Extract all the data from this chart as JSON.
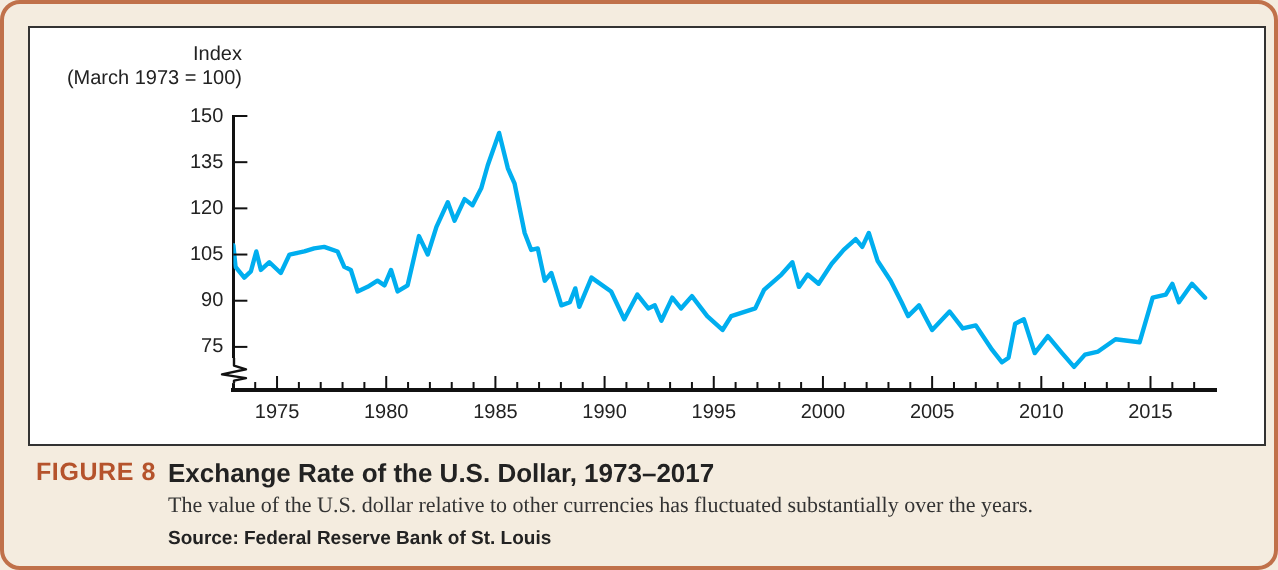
{
  "chart_data": {
    "type": "line",
    "title": "Exchange Rate of the U.S. Dollar, 1973–2017",
    "subtitle": "The value of the U.S. dollar relative to other currencies has fluctuated substantially over the years.",
    "ylabel": "Index\n(March 1973 = 100)",
    "annotations": [
      "FIGURE 8",
      "Source: Federal Reserve Bank of St. Louis"
    ],
    "xlim": [
      1973,
      2018
    ],
    "ylim": [
      61,
      150
    ],
    "yticks": [
      75,
      90,
      105,
      120,
      135,
      150
    ],
    "xticks": [
      {
        "value": 1974,
        "label": null
      },
      1975,
      {
        "value": 1976,
        "label": null
      },
      {
        "value": 1977,
        "label": null
      },
      {
        "value": 1978,
        "label": null
      },
      {
        "value": 1979,
        "label": null
      },
      1980,
      {
        "value": 1981,
        "label": null
      },
      {
        "value": 1982,
        "label": null
      },
      {
        "value": 1983,
        "label": null
      },
      {
        "value": 1984,
        "label": null
      },
      1985,
      {
        "value": 1986,
        "label": null
      },
      {
        "value": 1987,
        "label": null
      },
      {
        "value": 1988,
        "label": null
      },
      {
        "value": 1989,
        "label": null
      },
      1990,
      {
        "value": 1991,
        "label": null
      },
      {
        "value": 1992,
        "label": null
      },
      {
        "value": 1993,
        "label": null
      },
      {
        "value": 1994,
        "label": null
      },
      1995,
      {
        "value": 1996,
        "label": null
      },
      {
        "value": 1997,
        "label": null
      },
      {
        "value": 1998,
        "label": null
      },
      {
        "value": 1999,
        "label": null
      },
      2000,
      {
        "value": 2001,
        "label": null
      },
      {
        "value": 2002,
        "label": null
      },
      {
        "value": 2003,
        "label": null
      },
      {
        "value": 2004,
        "label": null
      },
      2005,
      {
        "value": 2006,
        "label": null
      },
      {
        "value": 2007,
        "label": null
      },
      {
        "value": 2008,
        "label": null
      },
      {
        "value": 2009,
        "label": null
      },
      2010,
      {
        "value": 2011,
        "label": null
      },
      {
        "value": 2012,
        "label": null
      },
      {
        "value": 2013,
        "label": null
      },
      {
        "value": 2014,
        "label": null
      },
      2015,
      {
        "value": 2016,
        "label": null
      },
      {
        "value": 2017,
        "label": null
      }
    ],
    "marker": "none",
    "line_style": "solid",
    "series": [
      {
        "color": "#00aeef",
        "x": [
          1973.0,
          1973.1,
          1973.5,
          1973.8,
          1974.05,
          1974.26,
          1974.65,
          1975.17,
          1975.57,
          1976.25,
          1976.7,
          1977.16,
          1977.77,
          1978.08,
          1978.38,
          1978.69,
          1979.15,
          1979.6,
          1979.92,
          1980.22,
          1980.52,
          1980.98,
          1981.5,
          1981.9,
          1982.3,
          1982.82,
          1983.13,
          1983.59,
          1983.95,
          1984.35,
          1984.65,
          1985.17,
          1985.57,
          1985.88,
          1986.34,
          1986.64,
          1986.94,
          1987.26,
          1987.56,
          1988.02,
          1988.41,
          1988.66,
          1988.84,
          1989.4,
          1990.3,
          1990.9,
          1991.5,
          1992.0,
          1992.3,
          1992.6,
          1993.1,
          1993.5,
          1994.0,
          1994.7,
          1995.4,
          1995.8,
          1996.9,
          1997.3,
          1998.1,
          1998.6,
          1998.9,
          1999.3,
          1999.8,
          2000.4,
          2000.95,
          2001.5,
          2001.8,
          2002.1,
          2002.5,
          2003.1,
          2003.6,
          2003.9,
          2004.4,
          2005.0,
          2005.8,
          2006.4,
          2007.0,
          2007.75,
          2008.2,
          2008.5,
          2008.8,
          2009.2,
          2009.7,
          2010.3,
          2010.95,
          2011.5,
          2012.0,
          2012.6,
          2013.4,
          2014.5,
          2015.1,
          2015.7,
          2016.0,
          2016.3,
          2016.9,
          2017.5
        ],
        "values": [
          108,
          101,
          97.5,
          99.5,
          106,
          100,
          102.5,
          99,
          105,
          106,
          107,
          107.5,
          106,
          101,
          100,
          93,
          94.5,
          96.5,
          95,
          100,
          93,
          95,
          111,
          105,
          114,
          122,
          116,
          123,
          121,
          126.5,
          134,
          144.5,
          133,
          128,
          112,
          106.5,
          107,
          96.5,
          99,
          88.5,
          89.5,
          94,
          88,
          97.5,
          93,
          84,
          92,
          87.5,
          88.5,
          83.5,
          91,
          87.5,
          91.5,
          85,
          80.5,
          85,
          87.5,
          93.5,
          98.5,
          102.5,
          94.5,
          98.5,
          95.5,
          102,
          106.5,
          110,
          107.5,
          112,
          103,
          96.5,
          89.5,
          85,
          88.5,
          80.5,
          86.5,
          81,
          82,
          74,
          70,
          71.5,
          82.5,
          84,
          73,
          78.5,
          73,
          68.5,
          72.5,
          73.5,
          77.5,
          76.5,
          91,
          92,
          95.5,
          89.5,
          95.5,
          91
        ]
      }
    ]
  }
}
